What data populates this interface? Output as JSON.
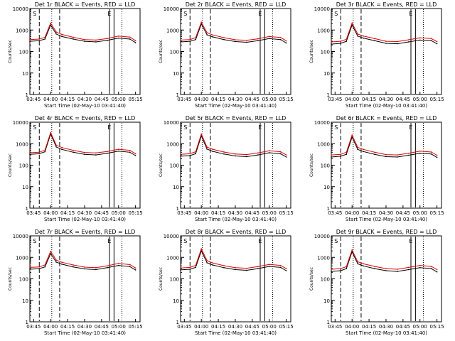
{
  "chart_data": [
    {
      "type": "line",
      "title": "Det 1r BLACK = Events, RED = LLD",
      "xlabel": "Start Time (02-May-10 03:41:40)",
      "ylabel": "Counts/sec",
      "ylim": [
        1,
        10000
      ],
      "yscale": "log",
      "xticks": [
        "03:45",
        "04:00",
        "04:15",
        "04:30",
        "04:45",
        "05:00",
        "05:15"
      ],
      "yticks": [
        "1",
        "10",
        "100",
        "1000",
        "10000"
      ],
      "x": [
        "03:41",
        "03:50",
        "03:55",
        "04:00",
        "04:05",
        "04:10",
        "04:20",
        "04:30",
        "04:40",
        "04:50",
        "05:00",
        "05:10",
        "05:15"
      ],
      "series": [
        {
          "name": "BLACK = Events",
          "values": [
            300,
            320,
            380,
            1700,
            650,
            500,
            380,
            300,
            280,
            330,
            420,
            380,
            260
          ]
        },
        {
          "name": "RED = LLD",
          "values": [
            360,
            380,
            460,
            2100,
            800,
            620,
            460,
            360,
            340,
            400,
            520,
            470,
            320
          ]
        }
      ],
      "markers": [
        {
          "label": "S",
          "style": "dashed"
        },
        {
          "label": "",
          "style": "dotted"
        },
        {
          "label": "",
          "style": "dashed"
        },
        {
          "label": "",
          "style": "solid"
        },
        {
          "label": "E",
          "style": "solid"
        },
        {
          "label": "",
          "style": "dotted"
        }
      ]
    },
    {
      "type": "line",
      "title": "Det 2r BLACK = Events, RED = LLD",
      "xlabel": "Start Time (02-May-10 03:41:40)",
      "ylabel": "Counts/sec",
      "ylim": [
        1,
        10000
      ],
      "yscale": "log",
      "xticks": [
        "03:45",
        "04:00",
        "04:15",
        "04:30",
        "04:45",
        "05:00",
        "05:15"
      ],
      "yticks": [
        "1",
        "10",
        "100",
        "1000",
        "10000"
      ],
      "x": [
        "03:41",
        "03:50",
        "03:55",
        "04:00",
        "04:05",
        "04:10",
        "04:20",
        "04:30",
        "04:40",
        "04:50",
        "05:00",
        "05:10",
        "05:15"
      ],
      "series": [
        {
          "name": "BLACK = Events",
          "values": [
            280,
            300,
            360,
            1900,
            600,
            480,
            360,
            290,
            270,
            320,
            400,
            360,
            250
          ]
        },
        {
          "name": "RED = LLD",
          "values": [
            340,
            360,
            440,
            2300,
            750,
            590,
            440,
            350,
            330,
            390,
            500,
            450,
            310
          ]
        }
      ],
      "markers": [
        {
          "label": "S",
          "style": "dashed"
        },
        {
          "label": "",
          "style": "dotted"
        },
        {
          "label": "",
          "style": "dashed"
        },
        {
          "label": "",
          "style": "solid"
        },
        {
          "label": "E",
          "style": "solid"
        },
        {
          "label": "",
          "style": "dotted"
        }
      ]
    },
    {
      "type": "line",
      "title": "Det 3r BLACK = Events, RED = LLD",
      "xlabel": "Start Time (02-May-10 03:41:40)",
      "ylabel": "Counts/sec",
      "ylim": [
        1,
        10000
      ],
      "yscale": "log",
      "xticks": [
        "03:45",
        "04:00",
        "04:15",
        "04:30",
        "04:45",
        "05:00",
        "05:15"
      ],
      "yticks": [
        "1",
        "10",
        "100",
        "1000",
        "10000"
      ],
      "x": [
        "03:41",
        "03:50",
        "03:55",
        "04:00",
        "04:05",
        "04:10",
        "04:20",
        "04:30",
        "04:40",
        "04:50",
        "05:00",
        "05:10",
        "05:15"
      ],
      "series": [
        {
          "name": "BLACK = Events",
          "values": [
            220,
            240,
            300,
            1700,
            520,
            420,
            320,
            240,
            230,
            280,
            340,
            320,
            230
          ]
        },
        {
          "name": "RED = LLD",
          "values": [
            280,
            300,
            370,
            2100,
            650,
            520,
            400,
            300,
            290,
            350,
            430,
            400,
            290
          ]
        }
      ],
      "markers": [
        {
          "label": "S",
          "style": "dashed"
        },
        {
          "label": "",
          "style": "dotted"
        },
        {
          "label": "",
          "style": "dashed"
        },
        {
          "label": "",
          "style": "solid"
        },
        {
          "label": "E",
          "style": "solid"
        },
        {
          "label": "",
          "style": "dotted"
        }
      ]
    },
    {
      "type": "line",
      "title": "Det 4r BLACK = Events, RED = LLD",
      "xlabel": "Start Time (02-May-10 03:41:40)",
      "ylabel": "Counts/sec",
      "ylim": [
        1,
        10000
      ],
      "yscale": "log",
      "xticks": [
        "03:45",
        "04:00",
        "04:15",
        "04:30",
        "04:45",
        "05:00",
        "05:15"
      ],
      "yticks": [
        "1",
        "10",
        "100",
        "1000",
        "10000"
      ],
      "x": [
        "03:41",
        "03:50",
        "03:55",
        "04:00",
        "04:05",
        "04:10",
        "04:20",
        "04:30",
        "04:40",
        "04:50",
        "05:00",
        "05:10",
        "05:15"
      ],
      "series": [
        {
          "name": "BLACK = Events",
          "values": [
            320,
            340,
            420,
            2800,
            700,
            540,
            400,
            320,
            300,
            360,
            450,
            400,
            280
          ]
        },
        {
          "name": "RED = LLD",
          "values": [
            380,
            400,
            500,
            3300,
            850,
            660,
            490,
            390,
            370,
            430,
            550,
            490,
            340
          ]
        }
      ],
      "markers": [
        {
          "label": "S",
          "style": "dashed"
        },
        {
          "label": "",
          "style": "dotted"
        },
        {
          "label": "",
          "style": "dashed"
        },
        {
          "label": "",
          "style": "solid"
        },
        {
          "label": "E",
          "style": "solid"
        },
        {
          "label": "",
          "style": "dotted"
        }
      ]
    },
    {
      "type": "line",
      "title": "Det 5r BLACK = Events, RED = LLD",
      "xlabel": "Start Time (02-May-10 03:41:40)",
      "ylabel": "Counts/sec",
      "ylim": [
        1,
        10000
      ],
      "yscale": "log",
      "xticks": [
        "03:45",
        "04:00",
        "04:15",
        "04:30",
        "04:45",
        "05:00",
        "05:15"
      ],
      "yticks": [
        "1",
        "10",
        "100",
        "1000",
        "10000"
      ],
      "x": [
        "03:41",
        "03:50",
        "03:55",
        "04:00",
        "04:05",
        "04:10",
        "04:20",
        "04:30",
        "04:40",
        "04:50",
        "05:00",
        "05:10",
        "05:15"
      ],
      "series": [
        {
          "name": "BLACK = Events",
          "values": [
            260,
            280,
            340,
            2300,
            560,
            440,
            330,
            270,
            250,
            300,
            380,
            340,
            240
          ]
        },
        {
          "name": "RED = LLD",
          "values": [
            320,
            340,
            420,
            2800,
            690,
            550,
            410,
            330,
            310,
            370,
            470,
            420,
            300
          ]
        }
      ],
      "markers": [
        {
          "label": "S",
          "style": "dashed"
        },
        {
          "label": "",
          "style": "dotted"
        },
        {
          "label": "",
          "style": "dashed"
        },
        {
          "label": "",
          "style": "solid"
        },
        {
          "label": "E",
          "style": "solid"
        },
        {
          "label": "",
          "style": "dotted"
        }
      ]
    },
    {
      "type": "line",
      "title": "Det 6r BLACK = Events, RED = LLD",
      "xlabel": "Start Time (02-May-10 03:41:40)",
      "ylabel": "Counts/sec",
      "ylim": [
        1,
        10000
      ],
      "yscale": "log",
      "xticks": [
        "03:45",
        "04:00",
        "04:15",
        "04:30",
        "04:45",
        "05:00",
        "05:15"
      ],
      "yticks": [
        "1",
        "10",
        "100",
        "1000",
        "10000"
      ],
      "x": [
        "03:41",
        "03:50",
        "03:55",
        "04:00",
        "04:05",
        "04:10",
        "04:20",
        "04:30",
        "04:40",
        "04:50",
        "05:00",
        "05:10",
        "05:15"
      ],
      "series": [
        {
          "name": "BLACK = Events",
          "values": [
            240,
            260,
            320,
            2000,
            540,
            430,
            320,
            250,
            240,
            290,
            360,
            330,
            230
          ]
        },
        {
          "name": "RED = LLD",
          "values": [
            300,
            320,
            400,
            2500,
            670,
            540,
            400,
            310,
            300,
            360,
            450,
            410,
            290
          ]
        }
      ],
      "markers": [
        {
          "label": "S",
          "style": "dashed"
        },
        {
          "label": "",
          "style": "dotted"
        },
        {
          "label": "",
          "style": "dashed"
        },
        {
          "label": "",
          "style": "solid"
        },
        {
          "label": "E",
          "style": "solid"
        },
        {
          "label": "",
          "style": "dotted"
        }
      ]
    },
    {
      "type": "line",
      "title": "Det 7r BLACK = Events, RED = LLD",
      "xlabel": "Start Time (02-May-10 03:41:40)",
      "ylabel": "Counts/sec",
      "ylim": [
        1,
        10000
      ],
      "yscale": "log",
      "xticks": [
        "03:45",
        "04:00",
        "04:15",
        "04:30",
        "04:45",
        "05:00",
        "05:15"
      ],
      "yticks": [
        "1",
        "10",
        "100",
        "1000",
        "10000"
      ],
      "x": [
        "03:41",
        "03:50",
        "03:55",
        "04:00",
        "04:05",
        "04:10",
        "04:20",
        "04:30",
        "04:40",
        "04:50",
        "05:00",
        "05:10",
        "05:15"
      ],
      "series": [
        {
          "name": "BLACK = Events",
          "values": [
            280,
            300,
            360,
            1500,
            600,
            480,
            360,
            290,
            270,
            330,
            420,
            370,
            260
          ]
        },
        {
          "name": "RED = LLD",
          "values": [
            340,
            360,
            440,
            1900,
            740,
            590,
            440,
            350,
            330,
            400,
            520,
            460,
            320
          ]
        }
      ],
      "markers": [
        {
          "label": "S",
          "style": "dashed"
        },
        {
          "label": "",
          "style": "dotted"
        },
        {
          "label": "",
          "style": "dashed"
        },
        {
          "label": "",
          "style": "solid"
        },
        {
          "label": "E",
          "style": "solid"
        },
        {
          "label": "",
          "style": "dotted"
        }
      ]
    },
    {
      "type": "line",
      "title": "Det 8r BLACK = Events, RED = LLD",
      "xlabel": "Start Time (02-May-10 03:41:40)",
      "ylabel": "Counts/sec",
      "ylim": [
        1,
        10000
      ],
      "yscale": "log",
      "xticks": [
        "03:45",
        "04:00",
        "04:15",
        "04:30",
        "04:45",
        "05:00",
        "05:15"
      ],
      "yticks": [
        "1",
        "10",
        "100",
        "1000",
        "10000"
      ],
      "x": [
        "03:41",
        "03:50",
        "03:55",
        "04:00",
        "04:05",
        "04:10",
        "04:20",
        "04:30",
        "04:40",
        "04:50",
        "05:00",
        "05:10",
        "05:15"
      ],
      "series": [
        {
          "name": "BLACK = Events",
          "values": [
            260,
            280,
            340,
            2000,
            560,
            440,
            330,
            270,
            250,
            300,
            380,
            340,
            240
          ]
        },
        {
          "name": "RED = LLD",
          "values": [
            320,
            340,
            420,
            2500,
            700,
            550,
            410,
            330,
            310,
            370,
            470,
            420,
            300
          ]
        }
      ],
      "markers": [
        {
          "label": "S",
          "style": "dashed"
        },
        {
          "label": "",
          "style": "dotted"
        },
        {
          "label": "",
          "style": "dashed"
        },
        {
          "label": "",
          "style": "solid"
        },
        {
          "label": "E",
          "style": "solid"
        },
        {
          "label": "",
          "style": "dotted"
        }
      ]
    },
    {
      "type": "line",
      "title": "Det 9r BLACK = Events, RED = LLD",
      "xlabel": "Start Time (02-May-10 03:41:40)",
      "ylabel": "Counts/sec",
      "ylim": [
        1,
        10000
      ],
      "yscale": "log",
      "xticks": [
        "03:45",
        "04:00",
        "04:15",
        "04:30",
        "04:45",
        "05:00",
        "05:15"
      ],
      "yticks": [
        "1",
        "10",
        "100",
        "1000",
        "10000"
      ],
      "x": [
        "03:41",
        "03:50",
        "03:55",
        "04:00",
        "04:05",
        "04:10",
        "04:20",
        "04:30",
        "04:40",
        "04:50",
        "05:00",
        "05:10",
        "05:15"
      ],
      "series": [
        {
          "name": "BLACK = Events",
          "values": [
            220,
            240,
            300,
            1800,
            500,
            400,
            300,
            240,
            220,
            270,
            330,
            300,
            210
          ]
        },
        {
          "name": "RED = LLD",
          "values": [
            280,
            300,
            370,
            2200,
            620,
            500,
            380,
            300,
            280,
            340,
            420,
            380,
            270
          ]
        }
      ],
      "markers": [
        {
          "label": "S",
          "style": "dashed"
        },
        {
          "label": "",
          "style": "dotted"
        },
        {
          "label": "",
          "style": "dashed"
        },
        {
          "label": "",
          "style": "solid"
        },
        {
          "label": "E",
          "style": "solid"
        },
        {
          "label": "",
          "style": "dotted"
        }
      ]
    }
  ]
}
